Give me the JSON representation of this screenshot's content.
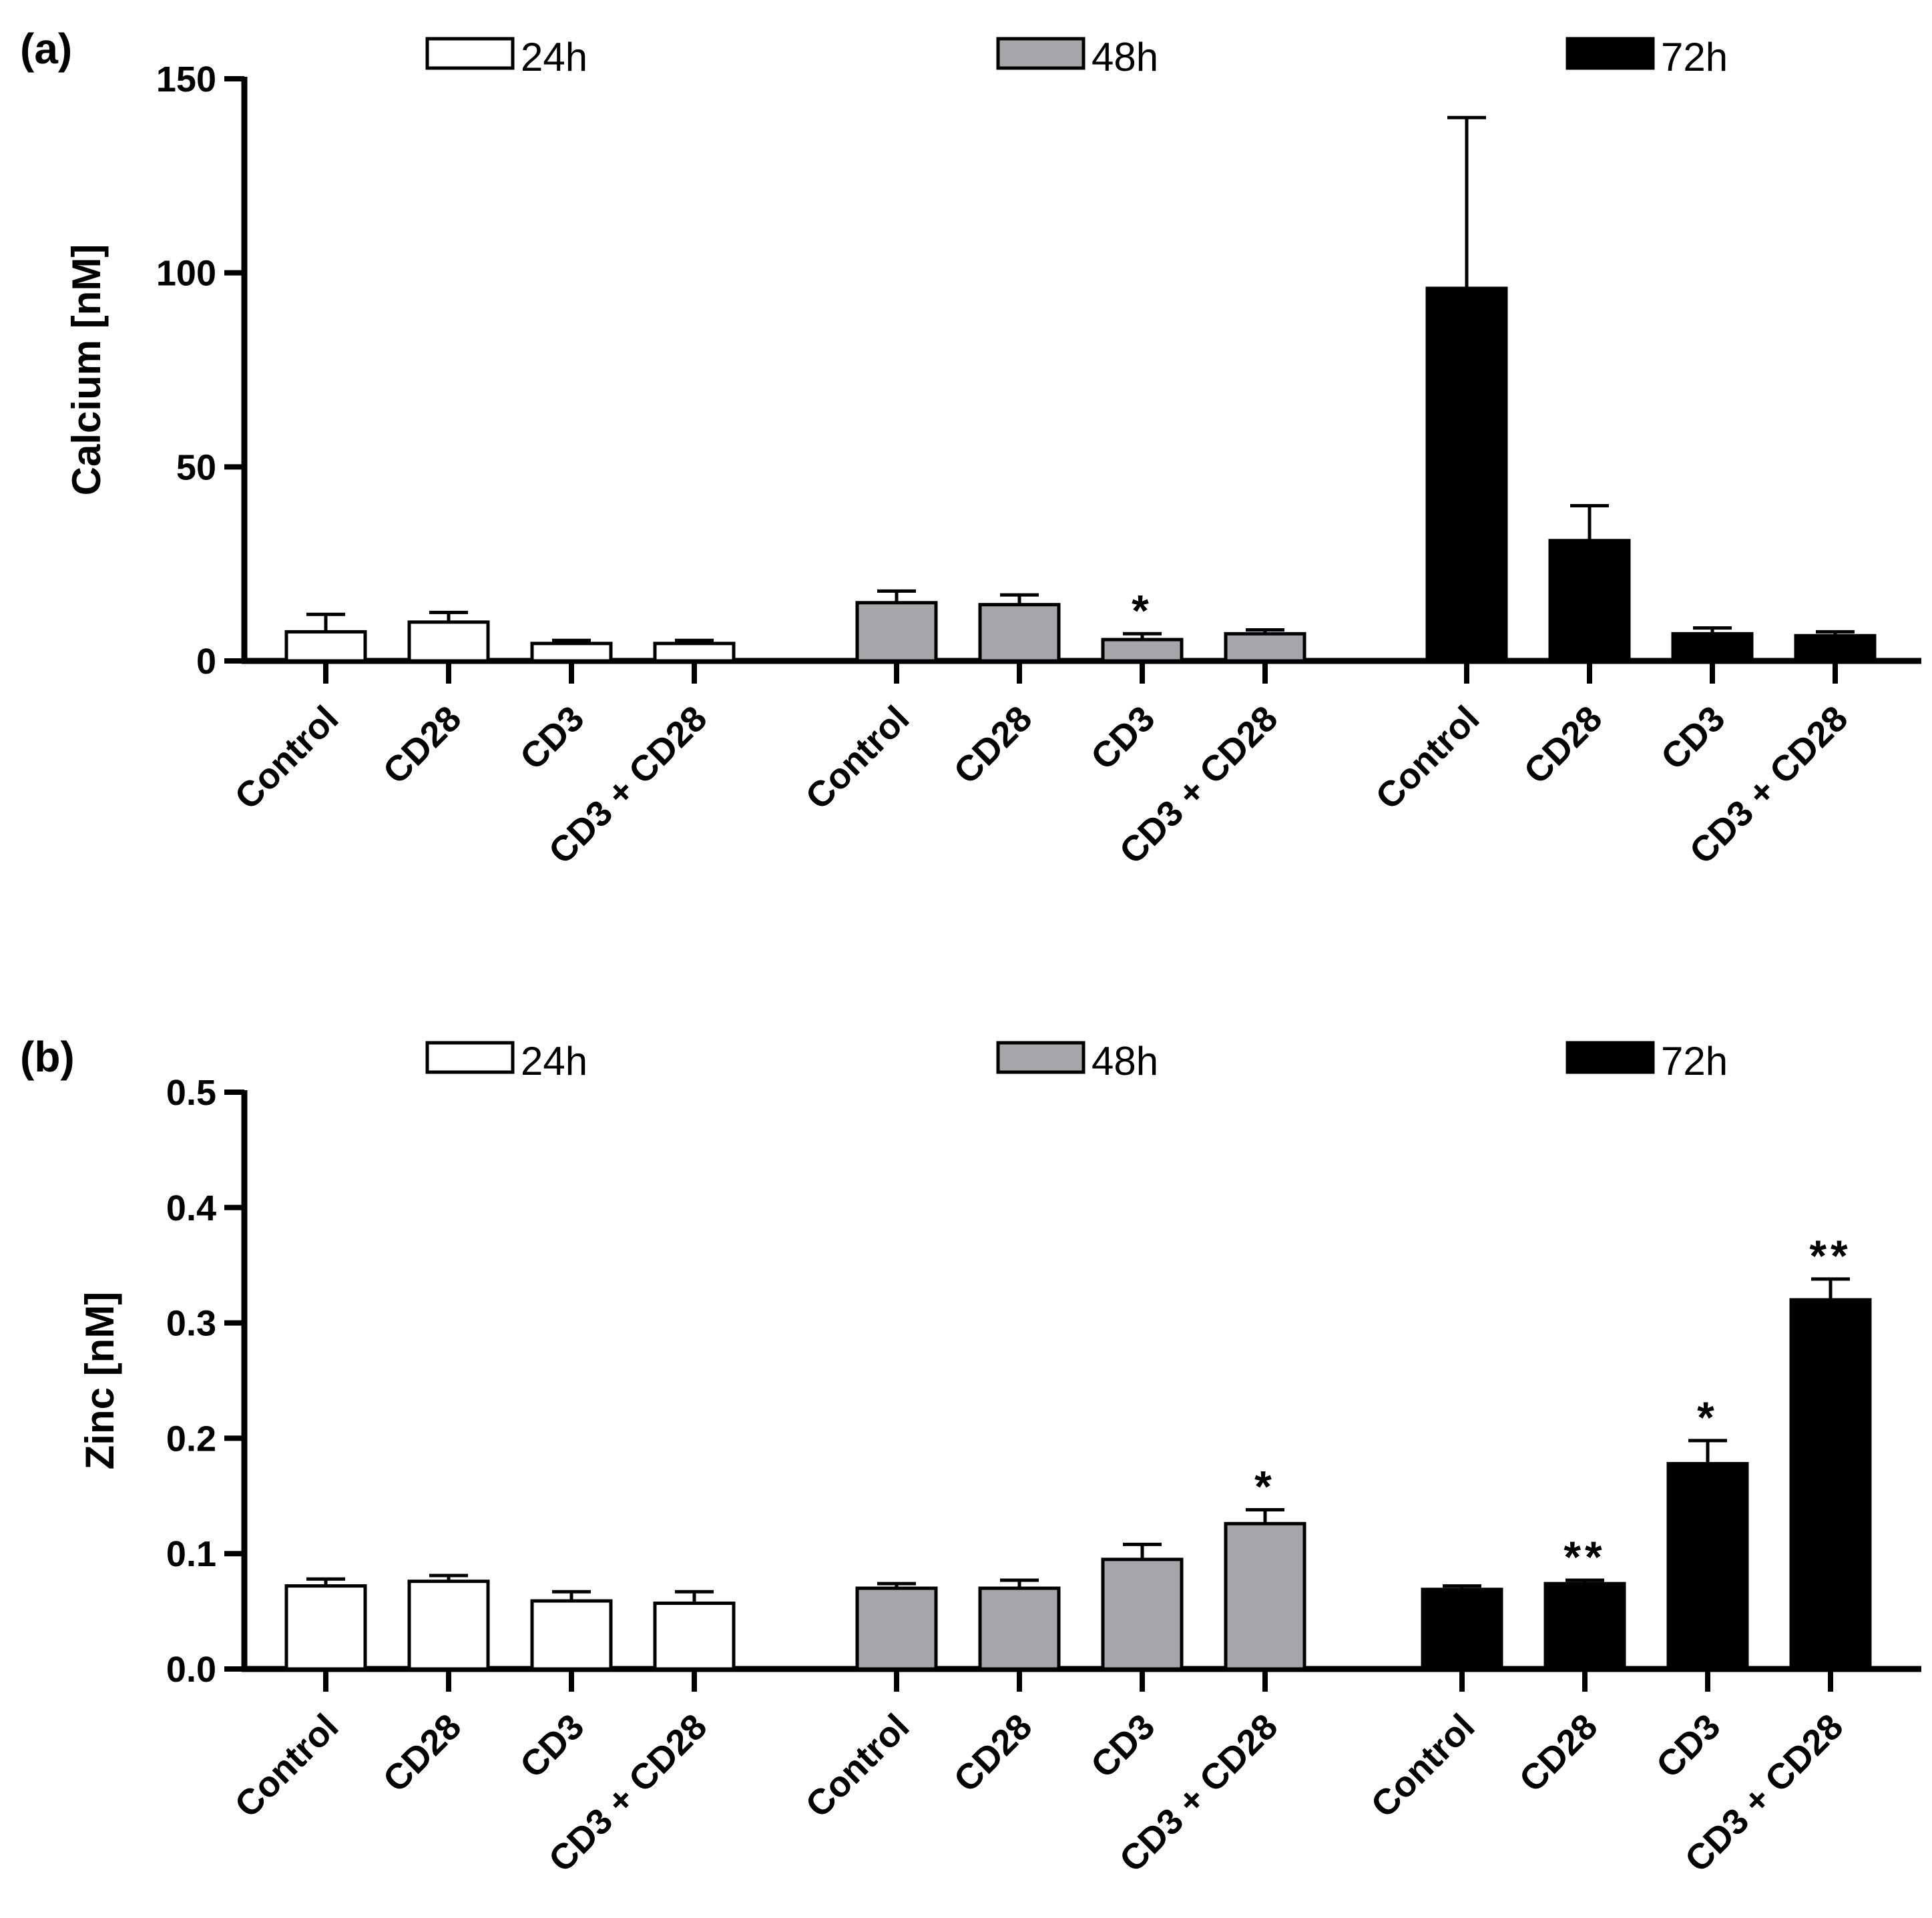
{
  "colors": {
    "24h": "#ffffff",
    "48h": "#a6a6a8",
    "72h": "#000000",
    "stroke": "#000000"
  },
  "chart_data": [
    {
      "panel": "(a)",
      "type": "bar",
      "ylabel": "Calcium [nM]",
      "ylim": [
        0,
        150
      ],
      "yticks": [
        "0",
        "50",
        "100",
        "150"
      ],
      "yticks_values": [
        0,
        50,
        100,
        150
      ],
      "legend": [
        "24h",
        "48h",
        "72h"
      ],
      "legend_position": "top",
      "groups": [
        {
          "name": "24h",
          "categories": [
            "Control",
            "CD28",
            "CD3",
            "CD3 + CD28"
          ],
          "values": [
            7.5,
            10,
            4.5,
            4.5
          ],
          "errors": [
            4.5,
            2.5,
            0.8,
            0.8
          ],
          "significance": [
            "",
            "",
            "",
            ""
          ]
        },
        {
          "name": "48h",
          "categories": [
            "Control",
            "CD28",
            "CD3",
            "CD3 + CD28"
          ],
          "values": [
            15,
            14.5,
            5.5,
            7
          ],
          "errors": [
            3,
            2.5,
            1.5,
            1
          ],
          "significance": [
            "",
            "",
            "*",
            ""
          ]
        },
        {
          "name": "72h",
          "categories": [
            "Control",
            "CD28",
            "CD3",
            "CD3 + CD28"
          ],
          "values": [
            96,
            31,
            7,
            6.5
          ],
          "errors": [
            44,
            9,
            1.5,
            1
          ],
          "significance": [
            "",
            "",
            "",
            ""
          ]
        }
      ]
    },
    {
      "panel": "(b)",
      "type": "bar",
      "ylabel": "Zinc [nM]",
      "ylim": [
        0,
        0.5
      ],
      "yticks": [
        "0.0",
        "0.1",
        "0.2",
        "0.3",
        "0.4",
        "0.5"
      ],
      "yticks_values": [
        0,
        0.1,
        0.2,
        0.3,
        0.4,
        0.5
      ],
      "legend": [
        "24h",
        "48h",
        "72h"
      ],
      "legend_position": "top",
      "groups": [
        {
          "name": "24h",
          "categories": [
            "Control",
            "CD28",
            "CD3",
            "CD3 + CD28"
          ],
          "values": [
            0.072,
            0.076,
            0.059,
            0.057
          ],
          "errors": [
            0.006,
            0.005,
            0.008,
            0.01
          ],
          "significance": [
            "",
            "",
            "",
            ""
          ]
        },
        {
          "name": "48h",
          "categories": [
            "Control",
            "CD28",
            "CD3",
            "CD3 + CD28"
          ],
          "values": [
            0.07,
            0.07,
            0.095,
            0.126
          ],
          "errors": [
            0.004,
            0.007,
            0.013,
            0.012
          ],
          "significance": [
            "",
            "",
            "",
            "*"
          ]
        },
        {
          "name": "72h",
          "categories": [
            "Control",
            "CD28",
            "CD3",
            "CD3 + CD28"
          ],
          "values": [
            0.069,
            0.074,
            0.178,
            0.32
          ],
          "errors": [
            0.003,
            0.003,
            0.02,
            0.018
          ],
          "significance": [
            "",
            "**",
            "*",
            "**"
          ]
        }
      ]
    }
  ]
}
